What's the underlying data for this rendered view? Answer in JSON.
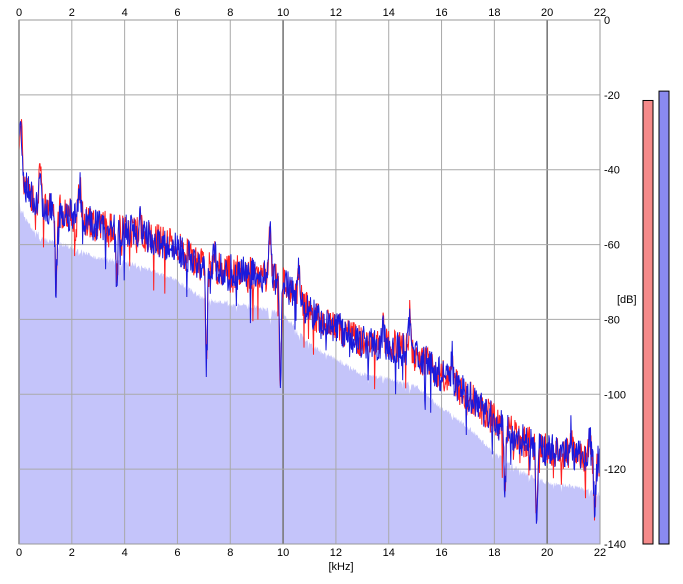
{
  "chart_data": {
    "type": "line",
    "xlabel": "[kHz]",
    "ylabel": "[dB]",
    "xlim": [
      0,
      22
    ],
    "ylim": [
      -140,
      0
    ],
    "x_ticks": [
      "0",
      "2",
      "4",
      "6",
      "8",
      "10",
      "12",
      "14",
      "16",
      "18",
      "20",
      "22"
    ],
    "y_ticks": [
      "0",
      "-20",
      "-40",
      "-60",
      "-80",
      "-100",
      "-120",
      "-140"
    ],
    "grid": true,
    "colors": {
      "left_channel": "#ff2020",
      "right_channel": "#1a1adc",
      "fill": "#c4c4fa",
      "grid": "#a9a9a9",
      "major_grid": "#7a7a7a",
      "left_meter": "#f58a8a",
      "right_meter": "#8a8af0"
    },
    "envelope": [
      {
        "x": 0.0,
        "y": -38
      },
      {
        "x": 0.2,
        "y": -44
      },
      {
        "x": 0.5,
        "y": -47
      },
      {
        "x": 1.0,
        "y": -50
      },
      {
        "x": 2.0,
        "y": -52
      },
      {
        "x": 3.0,
        "y": -55
      },
      {
        "x": 4.0,
        "y": -56
      },
      {
        "x": 5.0,
        "y": -58
      },
      {
        "x": 6.0,
        "y": -61
      },
      {
        "x": 7.0,
        "y": -66
      },
      {
        "x": 8.0,
        "y": -67
      },
      {
        "x": 9.0,
        "y": -68
      },
      {
        "x": 10.0,
        "y": -70
      },
      {
        "x": 11.0,
        "y": -78
      },
      {
        "x": 12.0,
        "y": -82
      },
      {
        "x": 13.0,
        "y": -86
      },
      {
        "x": 14.0,
        "y": -87
      },
      {
        "x": 15.0,
        "y": -89
      },
      {
        "x": 16.0,
        "y": -95
      },
      {
        "x": 17.0,
        "y": -100
      },
      {
        "x": 18.0,
        "y": -107
      },
      {
        "x": 19.0,
        "y": -112
      },
      {
        "x": 20.0,
        "y": -115
      },
      {
        "x": 21.0,
        "y": -116
      },
      {
        "x": 22.0,
        "y": -118
      }
    ],
    "peaks": [
      {
        "x": 0.03,
        "y": -31
      },
      {
        "x": 0.1,
        "y": -33
      },
      {
        "x": 0.8,
        "y": -41
      },
      {
        "x": 2.3,
        "y": -44
      },
      {
        "x": 4.6,
        "y": -54
      },
      {
        "x": 7.4,
        "y": -62
      },
      {
        "x": 9.5,
        "y": -56
      },
      {
        "x": 10.6,
        "y": -65
      },
      {
        "x": 13.8,
        "y": -82
      },
      {
        "x": 14.8,
        "y": -79
      },
      {
        "x": 16.4,
        "y": -90
      },
      {
        "x": 20.9,
        "y": -110
      },
      {
        "x": 21.6,
        "y": -111
      }
    ],
    "dips": [
      {
        "x": 1.4,
        "y": -72
      },
      {
        "x": 3.7,
        "y": -70
      },
      {
        "x": 7.1,
        "y": -92
      },
      {
        "x": 9.9,
        "y": -96
      },
      {
        "x": 18.4,
        "y": -125
      },
      {
        "x": 19.6,
        "y": -133
      },
      {
        "x": 21.8,
        "y": -130
      }
    ],
    "level_meters": [
      {
        "channel": "L",
        "db": -21.5
      },
      {
        "channel": "R",
        "db": -19.0
      }
    ]
  }
}
